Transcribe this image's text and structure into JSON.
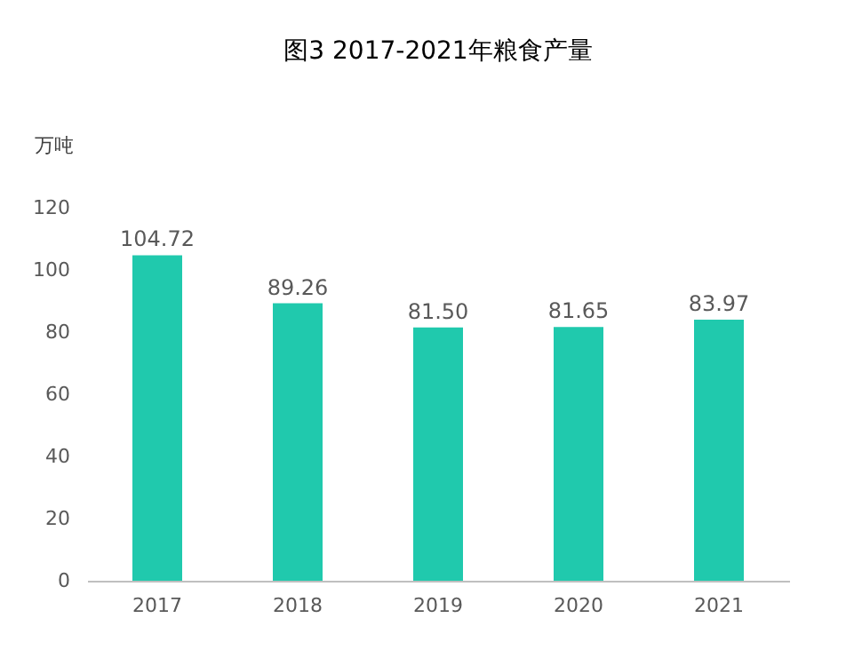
{
  "chart_data": {
    "type": "bar",
    "title": "图3  2017-2021年粮食产量",
    "ylabel": "万吨",
    "categories": [
      "2017",
      "2018",
      "2019",
      "2020",
      "2021"
    ],
    "values": [
      104.72,
      89.26,
      81.5,
      81.65,
      83.97
    ],
    "value_labels": [
      "104.72",
      "89.26",
      "81.50",
      "81.65",
      "83.97"
    ],
    "color": "#20c9ad",
    "ylim": [
      0,
      120
    ],
    "yticks": [
      0,
      20,
      40,
      60,
      80,
      100,
      120
    ],
    "grid": false
  }
}
